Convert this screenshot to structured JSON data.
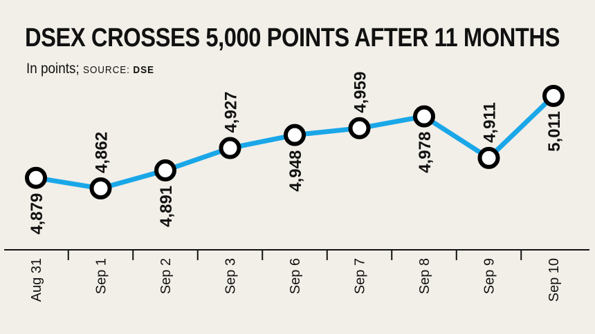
{
  "title": "DSEX CROSSES 5,000 POINTS AFTER 11 MONTHS",
  "subtitle": {
    "unit_text": "In points;",
    "source_prefix": "SOURCE:",
    "source_name": "DSE"
  },
  "colors": {
    "background": "#f2efe8",
    "line": "#1aa7e8",
    "marker_stroke": "#000000",
    "marker_fill": "#ffffff",
    "axis": "#111111"
  },
  "chart_data": {
    "type": "line",
    "title": "DSEX CROSSES 5,000 POINTS AFTER 11 MONTHS",
    "xlabel": "",
    "ylabel": "In points",
    "categories": [
      "Aug 31",
      "Sep 1",
      "Sep 2",
      "Sep 3",
      "Sep 6",
      "Sep 7",
      "Sep 8",
      "Sep 9",
      "Sep 10"
    ],
    "values": [
      4879,
      4862,
      4891,
      4927,
      4948,
      4959,
      4978,
      4911,
      5011
    ],
    "value_labels": [
      "4,879",
      "4,862",
      "4,891",
      "4,927",
      "4,948",
      "4,959",
      "4,978",
      "4,911",
      "5,011"
    ],
    "label_positions": [
      "below",
      "above",
      "below",
      "above",
      "below",
      "above",
      "below",
      "above",
      "below"
    ],
    "ylim": [
      4800,
      5030
    ],
    "grid": false,
    "legend": "none"
  }
}
